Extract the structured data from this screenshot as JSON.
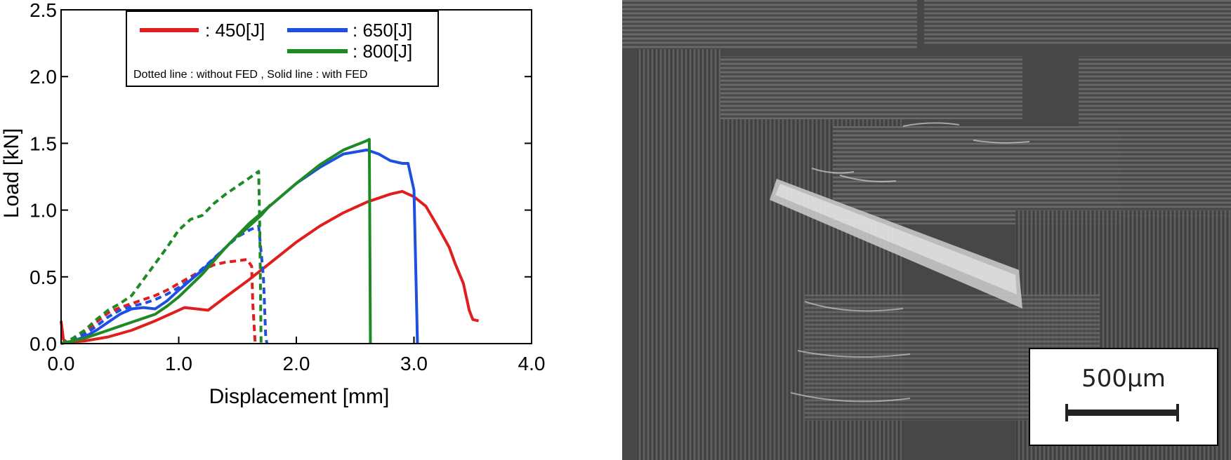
{
  "chart_data": {
    "type": "line",
    "xlabel": "Displacement [mm]",
    "ylabel": "Load [kN]",
    "xlim": [
      0,
      4.0
    ],
    "ylim": [
      0,
      2.5
    ],
    "xticks": [
      "0.0",
      "1.0",
      "2.0",
      "3.0",
      "4.0"
    ],
    "yticks": [
      "0.0",
      "0.5",
      "1.0",
      "1.5",
      "2.0",
      "2.5"
    ],
    "legend": {
      "entries": [
        {
          "label": ": 450[J]",
          "color": "#e01e1e"
        },
        {
          "label": ": 650[J]",
          "color": "#1f4fe0"
        },
        {
          "label": ": 800[J]",
          "color": "#1e8a24"
        }
      ],
      "note": "Dotted line : without FED , Solid line : with FED",
      "placement": "top-center"
    },
    "series": [
      {
        "energy": "450[J]",
        "style": "dotted",
        "color": "#e01e1e",
        "x": [
          0.0,
          0.1,
          0.2,
          0.3,
          0.4,
          0.5,
          0.6,
          0.7,
          0.8,
          0.9,
          1.0,
          1.1,
          1.2,
          1.3,
          1.4,
          1.5,
          1.58,
          1.62,
          1.63,
          1.65
        ],
        "y": [
          0.0,
          0.03,
          0.08,
          0.16,
          0.23,
          0.27,
          0.3,
          0.33,
          0.36,
          0.4,
          0.45,
          0.5,
          0.55,
          0.59,
          0.61,
          0.62,
          0.63,
          0.58,
          0.3,
          0.0
        ]
      },
      {
        "energy": "450[J]",
        "style": "solid",
        "color": "#e01e1e",
        "x": [
          0.0,
          0.02,
          0.05,
          0.2,
          0.4,
          0.6,
          0.8,
          1.0,
          1.05,
          1.15,
          1.25,
          1.4,
          1.6,
          1.8,
          2.0,
          2.2,
          2.4,
          2.6,
          2.8,
          2.9,
          3.0,
          3.1,
          3.2,
          3.3,
          3.35,
          3.42,
          3.47,
          3.5,
          3.55
        ],
        "y": [
          0.17,
          0.03,
          0.01,
          0.02,
          0.05,
          0.1,
          0.17,
          0.25,
          0.27,
          0.26,
          0.25,
          0.35,
          0.48,
          0.62,
          0.76,
          0.88,
          0.98,
          1.06,
          1.12,
          1.14,
          1.1,
          1.03,
          0.88,
          0.72,
          0.6,
          0.45,
          0.25,
          0.18,
          0.17
        ]
      },
      {
        "energy": "650[J]",
        "style": "dotted",
        "color": "#1f4fe0",
        "x": [
          0.0,
          0.1,
          0.2,
          0.3,
          0.4,
          0.5,
          0.6,
          0.7,
          0.8,
          0.9,
          1.0,
          1.1,
          1.2,
          1.3,
          1.4,
          1.5,
          1.6,
          1.68,
          1.72,
          1.74,
          1.75
        ],
        "y": [
          0.0,
          0.03,
          0.07,
          0.13,
          0.2,
          0.25,
          0.28,
          0.3,
          0.33,
          0.37,
          0.42,
          0.48,
          0.56,
          0.64,
          0.72,
          0.8,
          0.85,
          0.88,
          0.5,
          0.05,
          0.0
        ]
      },
      {
        "energy": "650[J]",
        "style": "solid",
        "color": "#1f4fe0",
        "x": [
          0.0,
          0.1,
          0.2,
          0.3,
          0.4,
          0.5,
          0.6,
          0.7,
          0.8,
          0.9,
          1.0,
          1.2,
          1.4,
          1.6,
          1.8,
          2.0,
          2.2,
          2.4,
          2.6,
          2.7,
          2.8,
          2.9,
          2.95,
          3.0,
          3.03
        ],
        "y": [
          0.0,
          0.02,
          0.05,
          0.1,
          0.16,
          0.22,
          0.26,
          0.27,
          0.26,
          0.32,
          0.4,
          0.55,
          0.72,
          0.9,
          1.05,
          1.2,
          1.32,
          1.42,
          1.45,
          1.42,
          1.37,
          1.35,
          1.35,
          1.15,
          0.0
        ]
      },
      {
        "energy": "800[J]",
        "style": "dotted",
        "color": "#1e8a24",
        "x": [
          0.0,
          0.1,
          0.2,
          0.3,
          0.4,
          0.5,
          0.6,
          0.7,
          0.8,
          0.9,
          1.0,
          1.1,
          1.2,
          1.3,
          1.4,
          1.5,
          1.6,
          1.68,
          1.69,
          1.7
        ],
        "y": [
          0.0,
          0.04,
          0.1,
          0.18,
          0.25,
          0.3,
          0.36,
          0.48,
          0.6,
          0.72,
          0.85,
          0.93,
          0.96,
          1.05,
          1.12,
          1.18,
          1.24,
          1.29,
          0.8,
          0.0
        ]
      },
      {
        "energy": "800[J]",
        "style": "solid",
        "color": "#1e8a24",
        "x": [
          0.0,
          0.1,
          0.2,
          0.3,
          0.4,
          0.5,
          0.6,
          0.7,
          0.8,
          0.9,
          1.0,
          1.2,
          1.4,
          1.6,
          1.8,
          2.0,
          2.2,
          2.4,
          2.6,
          2.62,
          2.63
        ],
        "y": [
          0.0,
          0.02,
          0.04,
          0.07,
          0.1,
          0.13,
          0.16,
          0.19,
          0.22,
          0.28,
          0.35,
          0.52,
          0.72,
          0.9,
          1.05,
          1.2,
          1.34,
          1.45,
          1.52,
          1.53,
          0.0
        ]
      },
      {
        "energy": "800[J]",
        "style": "solid",
        "color": "#1e8a24",
        "x": [
          1.5,
          1.6,
          1.7,
          1.78
        ],
        "y": [
          0.8,
          0.88,
          0.96,
          1.04
        ]
      }
    ]
  },
  "micrograph": {
    "scale_label": "500μm"
  }
}
